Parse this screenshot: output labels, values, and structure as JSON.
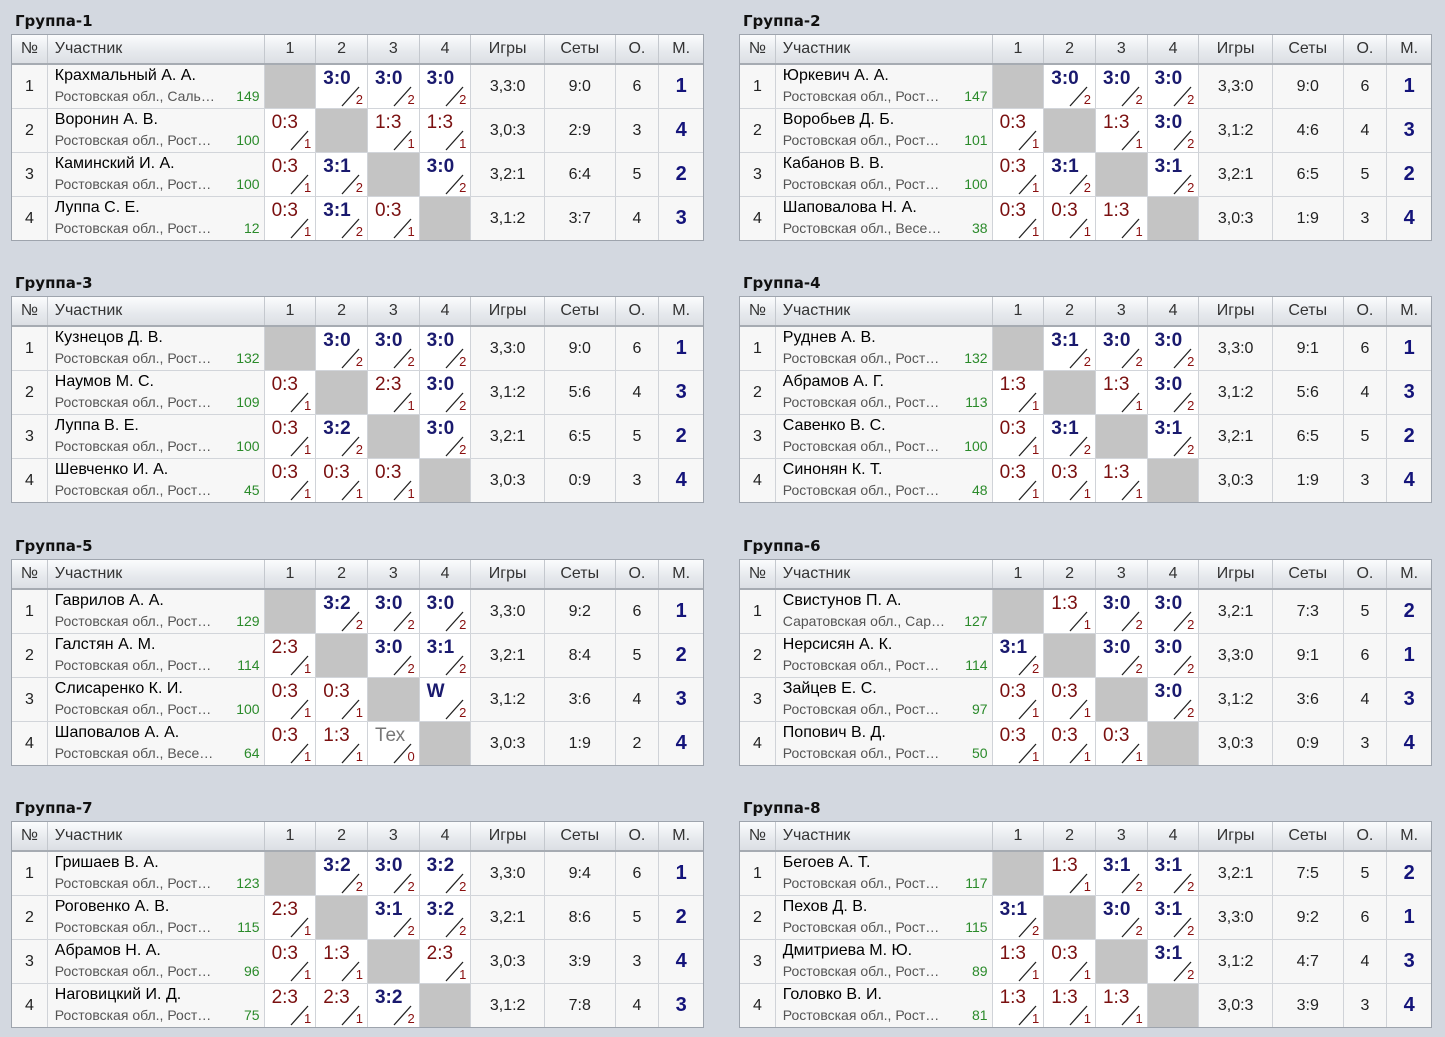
{
  "headers": {
    "no": "№",
    "participant": "Участник",
    "c1": "1",
    "c2": "2",
    "c3": "3",
    "c4": "4",
    "games": "Игры",
    "sets": "Сеты",
    "points": "О.",
    "place": "М."
  },
  "groups": [
    {
      "title": "Группа-1",
      "rows": [
        {
          "no": "1",
          "name": "Крахмальный А. А.",
          "region": "Ростовская обл., Саль…",
          "rating": "149",
          "results": [
            null,
            [
              "3:0",
              "2"
            ],
            [
              "3:0",
              "2"
            ],
            [
              "3:0",
              "2"
            ]
          ],
          "games": "3,3:0",
          "sets": "9:0",
          "points": "6",
          "place": "1"
        },
        {
          "no": "2",
          "name": "Воронин А. В.",
          "region": "Ростовская обл., Рост…",
          "rating": "100",
          "results": [
            [
              "0:3",
              "1"
            ],
            null,
            [
              "1:3",
              "1"
            ],
            [
              "1:3",
              "1"
            ]
          ],
          "games": "3,0:3",
          "sets": "2:9",
          "points": "3",
          "place": "4"
        },
        {
          "no": "3",
          "name": "Каминский И. А.",
          "region": "Ростовская обл., Рост…",
          "rating": "100",
          "results": [
            [
              "0:3",
              "1"
            ],
            [
              "3:1",
              "2"
            ],
            null,
            [
              "3:0",
              "2"
            ]
          ],
          "games": "3,2:1",
          "sets": "6:4",
          "points": "5",
          "place": "2"
        },
        {
          "no": "4",
          "name": "Луппа С. Е.",
          "region": "Ростовская обл., Рост…",
          "rating": "12",
          "results": [
            [
              "0:3",
              "1"
            ],
            [
              "3:1",
              "2"
            ],
            [
              "0:3",
              "1"
            ],
            null
          ],
          "games": "3,1:2",
          "sets": "3:7",
          "points": "4",
          "place": "3"
        }
      ]
    },
    {
      "title": "Группа-2",
      "rows": [
        {
          "no": "1",
          "name": "Юркевич А. А.",
          "region": "Ростовская обл., Рост…",
          "rating": "147",
          "results": [
            null,
            [
              "3:0",
              "2"
            ],
            [
              "3:0",
              "2"
            ],
            [
              "3:0",
              "2"
            ]
          ],
          "games": "3,3:0",
          "sets": "9:0",
          "points": "6",
          "place": "1"
        },
        {
          "no": "2",
          "name": "Воробьев Д. Б.",
          "region": "Ростовская обл., Рост…",
          "rating": "101",
          "results": [
            [
              "0:3",
              "1"
            ],
            null,
            [
              "1:3",
              "1"
            ],
            [
              "3:0",
              "2"
            ]
          ],
          "games": "3,1:2",
          "sets": "4:6",
          "points": "4",
          "place": "3"
        },
        {
          "no": "3",
          "name": "Кабанов В. В.",
          "region": "Ростовская обл., Рост…",
          "rating": "100",
          "results": [
            [
              "0:3",
              "1"
            ],
            [
              "3:1",
              "2"
            ],
            null,
            [
              "3:1",
              "2"
            ]
          ],
          "games": "3,2:1",
          "sets": "6:5",
          "points": "5",
          "place": "2"
        },
        {
          "no": "4",
          "name": "Шаповалова Н. А.",
          "region": "Ростовская обл., Весе…",
          "rating": "38",
          "results": [
            [
              "0:3",
              "1"
            ],
            [
              "0:3",
              "1"
            ],
            [
              "1:3",
              "1"
            ],
            null
          ],
          "games": "3,0:3",
          "sets": "1:9",
          "points": "3",
          "place": "4"
        }
      ]
    },
    {
      "title": "Группа-3",
      "rows": [
        {
          "no": "1",
          "name": "Кузнецов Д. В.",
          "region": "Ростовская обл., Рост…",
          "rating": "132",
          "results": [
            null,
            [
              "3:0",
              "2"
            ],
            [
              "3:0",
              "2"
            ],
            [
              "3:0",
              "2"
            ]
          ],
          "games": "3,3:0",
          "sets": "9:0",
          "points": "6",
          "place": "1"
        },
        {
          "no": "2",
          "name": "Наумов М. С.",
          "region": "Ростовская обл., Рост…",
          "rating": "109",
          "results": [
            [
              "0:3",
              "1"
            ],
            null,
            [
              "2:3",
              "1"
            ],
            [
              "3:0",
              "2"
            ]
          ],
          "games": "3,1:2",
          "sets": "5:6",
          "points": "4",
          "place": "3"
        },
        {
          "no": "3",
          "name": "Луппа В. Е.",
          "region": "Ростовская обл., Рост…",
          "rating": "100",
          "results": [
            [
              "0:3",
              "1"
            ],
            [
              "3:2",
              "2"
            ],
            null,
            [
              "3:0",
              "2"
            ]
          ],
          "games": "3,2:1",
          "sets": "6:5",
          "points": "5",
          "place": "2"
        },
        {
          "no": "4",
          "name": "Шевченко И. А.",
          "region": "Ростовская обл., Рост…",
          "rating": "45",
          "results": [
            [
              "0:3",
              "1"
            ],
            [
              "0:3",
              "1"
            ],
            [
              "0:3",
              "1"
            ],
            null
          ],
          "games": "3,0:3",
          "sets": "0:9",
          "points": "3",
          "place": "4"
        }
      ]
    },
    {
      "title": "Группа-4",
      "rows": [
        {
          "no": "1",
          "name": "Руднев А. В.",
          "region": "Ростовская обл., Рост…",
          "rating": "132",
          "results": [
            null,
            [
              "3:1",
              "2"
            ],
            [
              "3:0",
              "2"
            ],
            [
              "3:0",
              "2"
            ]
          ],
          "games": "3,3:0",
          "sets": "9:1",
          "points": "6",
          "place": "1"
        },
        {
          "no": "2",
          "name": "Абрамов А. Г.",
          "region": "Ростовская обл., Рост…",
          "rating": "113",
          "results": [
            [
              "1:3",
              "1"
            ],
            null,
            [
              "1:3",
              "1"
            ],
            [
              "3:0",
              "2"
            ]
          ],
          "games": "3,1:2",
          "sets": "5:6",
          "points": "4",
          "place": "3"
        },
        {
          "no": "3",
          "name": "Савенко В. С.",
          "region": "Ростовская обл., Рост…",
          "rating": "100",
          "results": [
            [
              "0:3",
              "1"
            ],
            [
              "3:1",
              "2"
            ],
            null,
            [
              "3:1",
              "2"
            ]
          ],
          "games": "3,2:1",
          "sets": "6:5",
          "points": "5",
          "place": "2"
        },
        {
          "no": "4",
          "name": "Синонян К. Т.",
          "region": "Ростовская обл., Рост…",
          "rating": "48",
          "results": [
            [
              "0:3",
              "1"
            ],
            [
              "0:3",
              "1"
            ],
            [
              "1:3",
              "1"
            ],
            null
          ],
          "games": "3,0:3",
          "sets": "1:9",
          "points": "3",
          "place": "4"
        }
      ]
    },
    {
      "title": "Группа-5",
      "rows": [
        {
          "no": "1",
          "name": "Гаврилов А. А.",
          "region": "Ростовская обл., Рост…",
          "rating": "129",
          "results": [
            null,
            [
              "3:2",
              "2"
            ],
            [
              "3:0",
              "2"
            ],
            [
              "3:0",
              "2"
            ]
          ],
          "games": "3,3:0",
          "sets": "9:2",
          "points": "6",
          "place": "1"
        },
        {
          "no": "2",
          "name": "Галстян А. М.",
          "region": "Ростовская обл., Рост…",
          "rating": "114",
          "results": [
            [
              "2:3",
              "1"
            ],
            null,
            [
              "3:0",
              "2"
            ],
            [
              "3:1",
              "2"
            ]
          ],
          "games": "3,2:1",
          "sets": "8:4",
          "points": "5",
          "place": "2"
        },
        {
          "no": "3",
          "name": "Слисаренко К. И.",
          "region": "Ростовская обл., Рост…",
          "rating": "100",
          "results": [
            [
              "0:3",
              "1"
            ],
            [
              "0:3",
              "1"
            ],
            null,
            [
              "W",
              "2"
            ]
          ],
          "games": "3,1:2",
          "sets": "3:6",
          "points": "4",
          "place": "3"
        },
        {
          "no": "4",
          "name": "Шаповалов А. А.",
          "region": "Ростовская обл., Весе…",
          "rating": "64",
          "results": [
            [
              "0:3",
              "1"
            ],
            [
              "1:3",
              "1"
            ],
            [
              "Тех",
              "0"
            ],
            null
          ],
          "games": "3,0:3",
          "sets": "1:9",
          "points": "2",
          "place": "4"
        }
      ]
    },
    {
      "title": "Группа-6",
      "rows": [
        {
          "no": "1",
          "name": "Свистунов П. А.",
          "region": "Саратовская обл., Сар…",
          "rating": "127",
          "results": [
            null,
            [
              "1:3",
              "1"
            ],
            [
              "3:0",
              "2"
            ],
            [
              "3:0",
              "2"
            ]
          ],
          "games": "3,2:1",
          "sets": "7:3",
          "points": "5",
          "place": "2"
        },
        {
          "no": "2",
          "name": "Нерсисян А. К.",
          "region": "Ростовская обл., Рост…",
          "rating": "114",
          "results": [
            [
              "3:1",
              "2"
            ],
            null,
            [
              "3:0",
              "2"
            ],
            [
              "3:0",
              "2"
            ]
          ],
          "games": "3,3:0",
          "sets": "9:1",
          "points": "6",
          "place": "1"
        },
        {
          "no": "3",
          "name": "Зайцев Е. С.",
          "region": "Ростовская обл., Рост…",
          "rating": "97",
          "results": [
            [
              "0:3",
              "1"
            ],
            [
              "0:3",
              "1"
            ],
            null,
            [
              "3:0",
              "2"
            ]
          ],
          "games": "3,1:2",
          "sets": "3:6",
          "points": "4",
          "place": "3"
        },
        {
          "no": "4",
          "name": "Попович В. Д.",
          "region": "Ростовская обл., Рост…",
          "rating": "50",
          "results": [
            [
              "0:3",
              "1"
            ],
            [
              "0:3",
              "1"
            ],
            [
              "0:3",
              "1"
            ],
            null
          ],
          "games": "3,0:3",
          "sets": "0:9",
          "points": "3",
          "place": "4"
        }
      ]
    },
    {
      "title": "Группа-7",
      "rows": [
        {
          "no": "1",
          "name": "Гришаев В. А.",
          "region": "Ростовская обл., Рост…",
          "rating": "123",
          "results": [
            null,
            [
              "3:2",
              "2"
            ],
            [
              "3:0",
              "2"
            ],
            [
              "3:2",
              "2"
            ]
          ],
          "games": "3,3:0",
          "sets": "9:4",
          "points": "6",
          "place": "1"
        },
        {
          "no": "2",
          "name": "Роговенко А. В.",
          "region": "Ростовская обл., Рост…",
          "rating": "115",
          "results": [
            [
              "2:3",
              "1"
            ],
            null,
            [
              "3:1",
              "2"
            ],
            [
              "3:2",
              "2"
            ]
          ],
          "games": "3,2:1",
          "sets": "8:6",
          "points": "5",
          "place": "2"
        },
        {
          "no": "3",
          "name": "Абрамов Н. А.",
          "region": "Ростовская обл., Рост…",
          "rating": "96",
          "results": [
            [
              "0:3",
              "1"
            ],
            [
              "1:3",
              "1"
            ],
            null,
            [
              "2:3",
              "1"
            ]
          ],
          "games": "3,0:3",
          "sets": "3:9",
          "points": "3",
          "place": "4"
        },
        {
          "no": "4",
          "name": "Наговицкий И. Д.",
          "region": "Ростовская обл., Рост…",
          "rating": "75",
          "results": [
            [
              "2:3",
              "1"
            ],
            [
              "2:3",
              "1"
            ],
            [
              "3:2",
              "2"
            ],
            null
          ],
          "games": "3,1:2",
          "sets": "7:8",
          "points": "4",
          "place": "3"
        }
      ]
    },
    {
      "title": "Группа-8",
      "rows": [
        {
          "no": "1",
          "name": "Бегоев А. Т.",
          "region": "Ростовская обл., Рост…",
          "rating": "117",
          "results": [
            null,
            [
              "1:3",
              "1"
            ],
            [
              "3:1",
              "2"
            ],
            [
              "3:1",
              "2"
            ]
          ],
          "games": "3,2:1",
          "sets": "7:5",
          "points": "5",
          "place": "2"
        },
        {
          "no": "2",
          "name": "Пехов Д. В.",
          "region": "Ростовская обл., Рост…",
          "rating": "115",
          "results": [
            [
              "3:1",
              "2"
            ],
            null,
            [
              "3:0",
              "2"
            ],
            [
              "3:1",
              "2"
            ]
          ],
          "games": "3,3:0",
          "sets": "9:2",
          "points": "6",
          "place": "1"
        },
        {
          "no": "3",
          "name": "Дмитриева М. Ю.",
          "region": "Ростовская обл., Рост…",
          "rating": "89",
          "results": [
            [
              "1:3",
              "1"
            ],
            [
              "0:3",
              "1"
            ],
            null,
            [
              "3:1",
              "2"
            ]
          ],
          "games": "3,1:2",
          "sets": "4:7",
          "points": "4",
          "place": "3"
        },
        {
          "no": "4",
          "name": "Головко В. И.",
          "region": "Ростовская обл., Рост…",
          "rating": "81",
          "results": [
            [
              "1:3",
              "1"
            ],
            [
              "1:3",
              "1"
            ],
            [
              "1:3",
              "1"
            ],
            null
          ],
          "games": "3,0:3",
          "sets": "3:9",
          "points": "3",
          "place": "4"
        }
      ]
    }
  ]
}
